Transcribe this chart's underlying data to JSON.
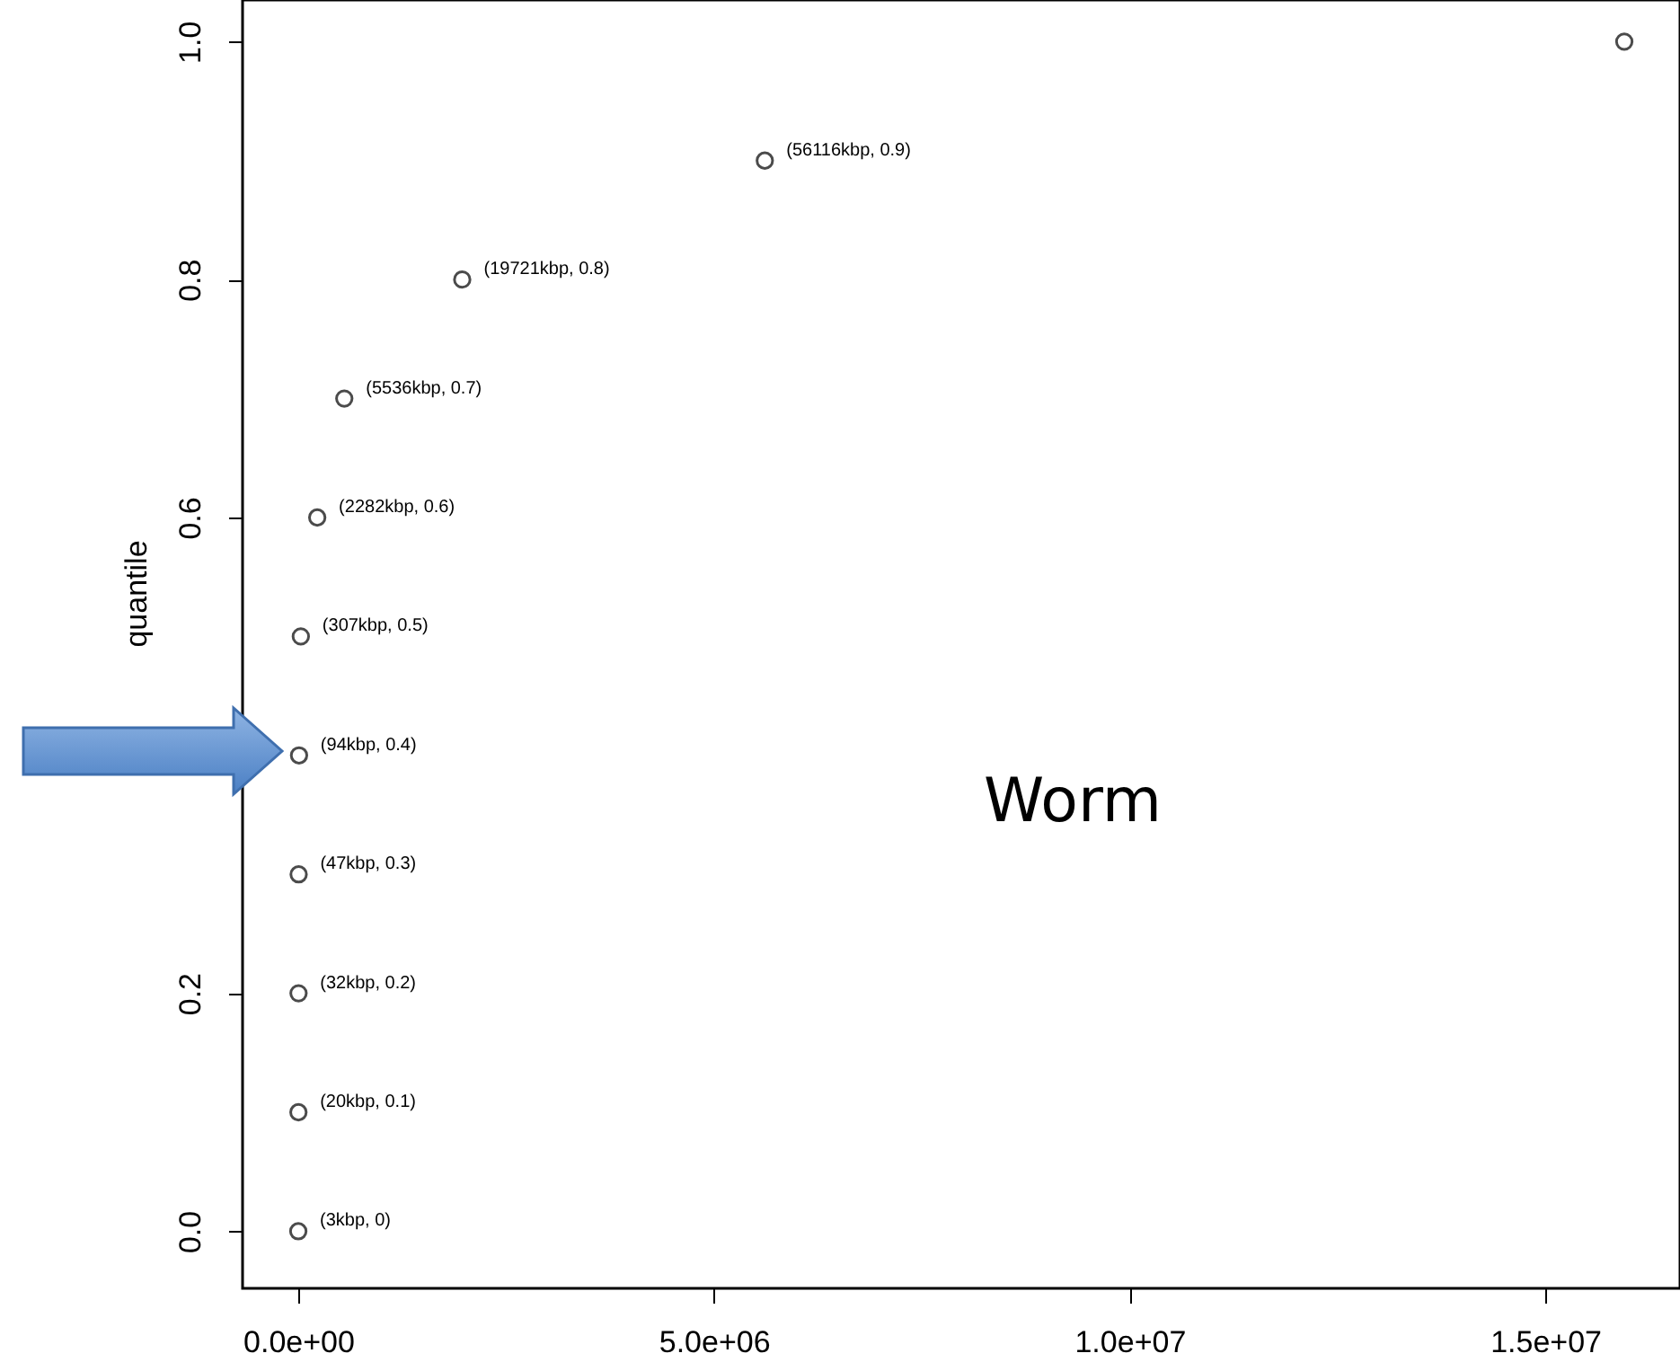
{
  "chart_data": {
    "type": "scatter",
    "ylabel": "quantile",
    "color": "#000000",
    "marker": "circle",
    "grid": false,
    "x": [
      300,
      2000,
      3200,
      4700,
      9400,
      30700,
      228200,
      553600,
      1972100,
      5611600,
      15950000
    ],
    "values": [
      0,
      0.1,
      0.2,
      0.3,
      0.4,
      0.5,
      0.6,
      0.7,
      0.8,
      0.9,
      1.0
    ],
    "xlim": [
      -670000,
      16620000
    ],
    "ylim": [
      -0.048,
      1.035
    ],
    "xticks": [
      {
        "value": 0,
        "label": "0.0e+00"
      },
      {
        "value": 5000000,
        "label": "5.0e+06"
      },
      {
        "value": 10000000,
        "label": "1.0e+07"
      },
      {
        "value": 15000000,
        "label": "1.5e+07"
      }
    ],
    "yticks": [
      {
        "value": 0,
        "label": "0.0"
      },
      {
        "value": 0.2,
        "label": "0.2"
      },
      {
        "value": 0.4,
        "label": null
      },
      {
        "value": 0.6,
        "label": "0.6"
      },
      {
        "value": 0.8,
        "label": "0.8"
      },
      {
        "value": 1,
        "label": "1.0"
      }
    ],
    "annotations": [
      {
        "text": "(3kbp, 0)",
        "x": 300,
        "y": 0
      },
      {
        "text": "(20kbp, 0.1)",
        "x": 2000,
        "y": 0.1
      },
      {
        "text": "(32kbp, 0.2)",
        "x": 3200,
        "y": 0.2
      },
      {
        "text": "(47kbp, 0.3)",
        "x": 4700,
        "y": 0.3
      },
      {
        "text": "(94kbp, 0.4)",
        "x": 9400,
        "y": 0.4
      },
      {
        "text": "(307kbp, 0.5)",
        "x": 30700,
        "y": 0.5
      },
      {
        "text": "(2282kbp, 0.6)",
        "x": 228200,
        "y": 0.6
      },
      {
        "text": "(5536kbp, 0.7)",
        "x": 553600,
        "y": 0.7
      },
      {
        "text": "(19721kbp, 0.8)",
        "x": 1972100,
        "y": 0.8
      },
      {
        "text": "(56116kbp, 0.9)",
        "x": 5611600,
        "y": 0.9
      },
      "Worm"
    ]
  }
}
